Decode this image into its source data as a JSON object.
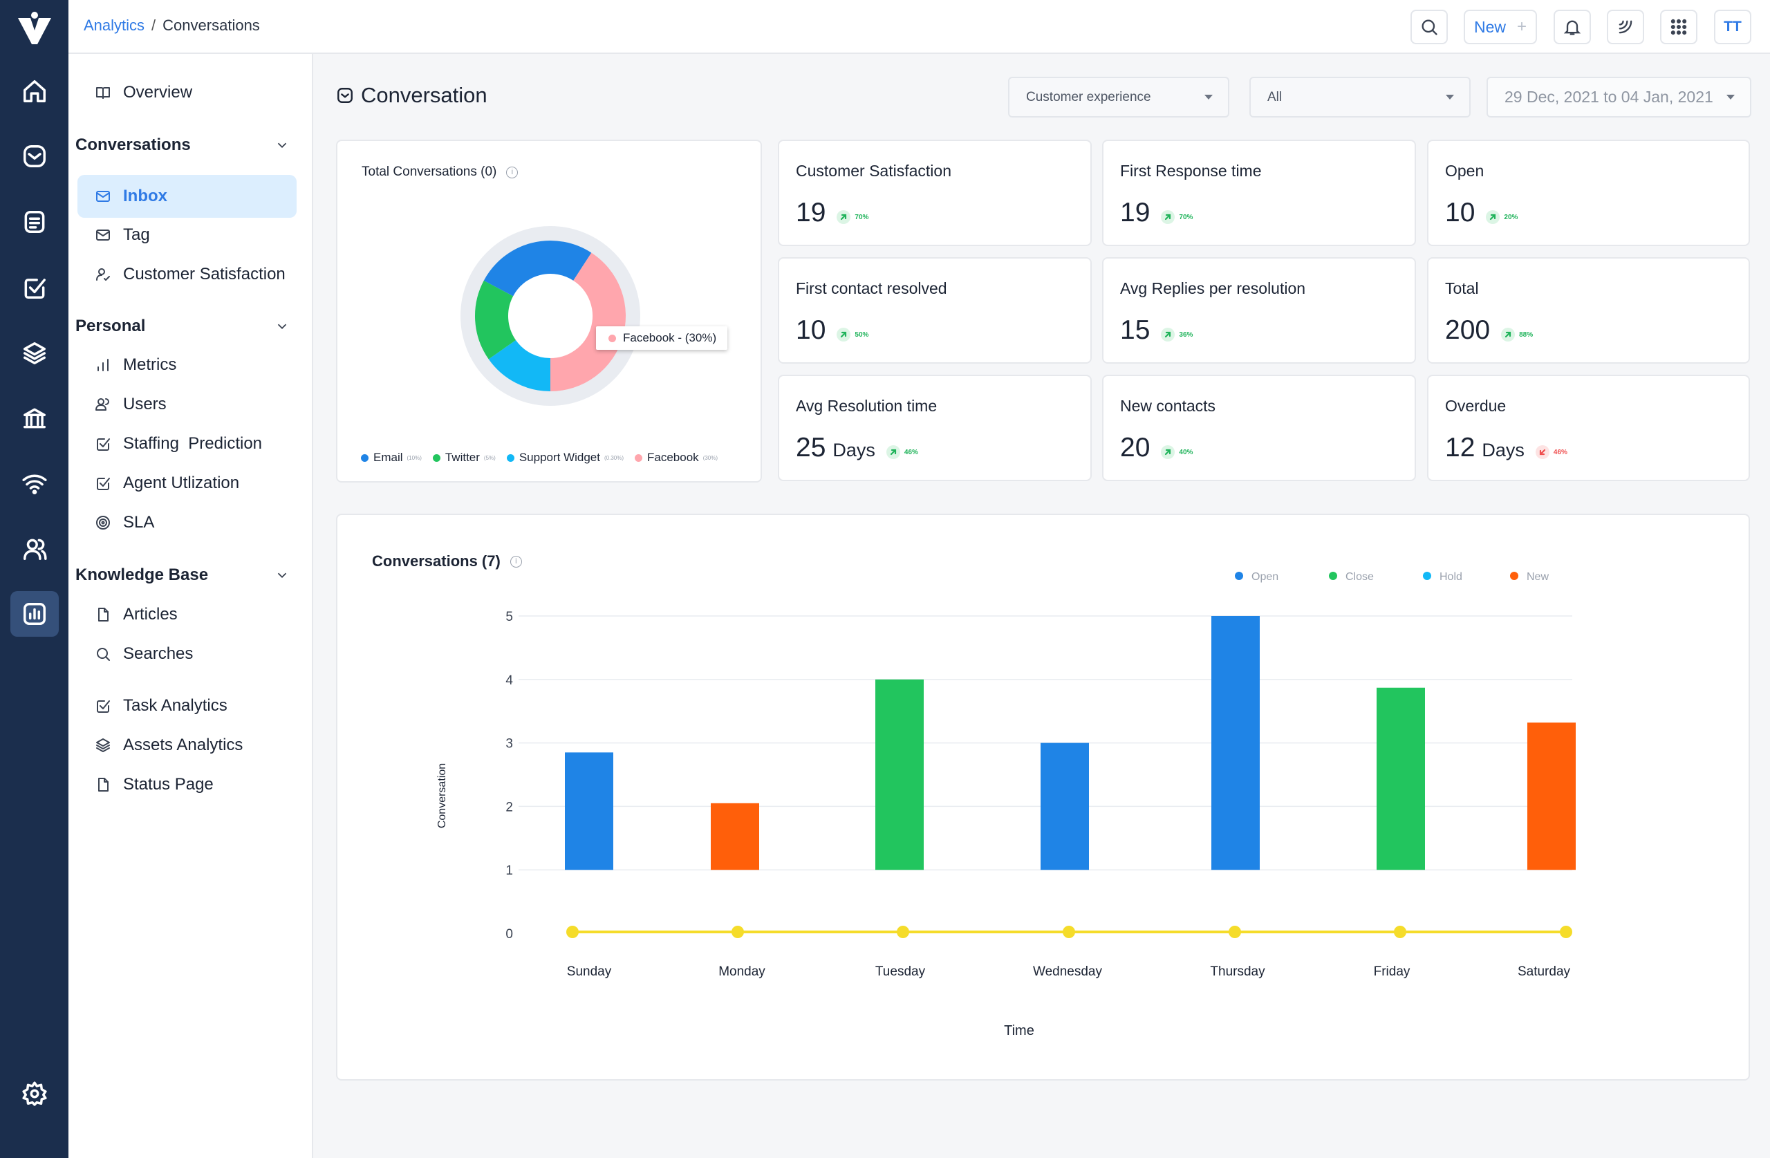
{
  "breadcrumb": {
    "parent": "Analytics",
    "separator": "/",
    "current": "Conversations"
  },
  "topbar": {
    "new_label": "New",
    "new_plus": "+",
    "avatar_initials": "TT"
  },
  "sidebar": {
    "overview": "Overview",
    "conversations_header": "Conversations",
    "conversations": [
      {
        "label": "Inbox",
        "icon": "mail-icon",
        "selected": true
      },
      {
        "label": "Tag",
        "icon": "mail-icon"
      },
      {
        "label": "Customer Satisfaction",
        "icon": "user-check-icon"
      }
    ],
    "personal_header": "Personal",
    "personal": [
      {
        "label": "Metrics",
        "icon": "bar-chart-icon"
      },
      {
        "label": "Users",
        "icon": "users-icon"
      },
      {
        "label": "Staffing  Prediction",
        "icon": "check-square-icon"
      },
      {
        "label": "Agent Utlization",
        "icon": "check-square-icon"
      },
      {
        "label": "SLA",
        "icon": "target-icon"
      }
    ],
    "kb_header": "Knowledge Base",
    "kb": [
      {
        "label": "Articles",
        "icon": "file-icon"
      },
      {
        "label": "Searches",
        "icon": "search-icon"
      }
    ],
    "extra": [
      {
        "label": "Task Analytics",
        "icon": "check-square-icon"
      },
      {
        "label": "Assets Analytics",
        "icon": "layers-icon"
      },
      {
        "label": "Status Page",
        "icon": "file-icon"
      }
    ]
  },
  "main": {
    "title": "Conversation",
    "filters": {
      "category": "Customer experience",
      "scope": "All",
      "date_range": "29 Dec, 2021 to 04 Jan, 2021"
    }
  },
  "donut": {
    "title": "Total Conversations (0)",
    "tooltip": "Facebook - (30%)",
    "legend": [
      {
        "name": "Email",
        "pct": "(10%)",
        "color": "#1f84e6"
      },
      {
        "name": "Twitter",
        "pct": "(5%)",
        "color": "#22c55e"
      },
      {
        "name": "Support Widget",
        "pct": "(0.30%)",
        "color": "#12b8f6"
      },
      {
        "name": "Facebook",
        "pct": "(30%)",
        "color": "#ffa6ad"
      }
    ]
  },
  "stats": [
    {
      "label": "Customer Satisfaction",
      "value": "19",
      "unit": "",
      "change": "70%",
      "trend": "up"
    },
    {
      "label": "First Response time",
      "value": "19",
      "unit": "",
      "change": "70%",
      "trend": "up"
    },
    {
      "label": "Open",
      "value": "10",
      "unit": "",
      "change": "20%",
      "trend": "up"
    },
    {
      "label": "First contact resolved",
      "value": "10",
      "unit": "",
      "change": "50%",
      "trend": "up"
    },
    {
      "label": "Avg Replies per resolution",
      "value": "15",
      "unit": "",
      "change": "36%",
      "trend": "up"
    },
    {
      "label": "Total",
      "value": "200",
      "unit": "",
      "change": "88%",
      "trend": "up"
    },
    {
      "label": "Avg Resolution time",
      "value": "25",
      "unit": "Days",
      "change": "46%",
      "trend": "up"
    },
    {
      "label": "New contacts",
      "value": "20",
      "unit": "",
      "change": "40%",
      "trend": "up"
    },
    {
      "label": "Overdue",
      "value": "12",
      "unit": "Days",
      "change": "46%",
      "trend": "down"
    }
  ],
  "chart_data": {
    "type": "bar",
    "title": "Conversations (7)",
    "xlabel": "Time",
    "ylabel": "Conversation",
    "ylim": [
      0,
      5
    ],
    "yticks": [
      0,
      1,
      2,
      3,
      4,
      5
    ],
    "categories": [
      "Sunday",
      "Monday",
      "Tuesday",
      "Wednesday",
      "Thursday",
      "Friday",
      "Saturday"
    ],
    "legend": [
      {
        "name": "Open",
        "color": "#1f84e6"
      },
      {
        "name": "Close",
        "color": "#22c55e"
      },
      {
        "name": "Hold",
        "color": "#12b8f6"
      },
      {
        "name": "New",
        "color": "#ff5f0a"
      }
    ],
    "legend_position": "top-right",
    "bars": [
      {
        "category": "Sunday",
        "series": "Open",
        "value": 2.85
      },
      {
        "category": "Monday",
        "series": "New",
        "value": 2.05
      },
      {
        "category": "Tuesday",
        "series": "Close",
        "value": 4.0
      },
      {
        "category": "Wednesday",
        "series": "Open",
        "value": 3.0
      },
      {
        "category": "Thursday",
        "series": "Open",
        "value": 5.0
      },
      {
        "category": "Friday",
        "series": "Close",
        "value": 3.87
      },
      {
        "category": "Saturday",
        "series": "New",
        "value": 3.32
      }
    ],
    "line": {
      "color": "#f5dc2a",
      "values": [
        0,
        0,
        0,
        0,
        0,
        0,
        0
      ]
    }
  }
}
